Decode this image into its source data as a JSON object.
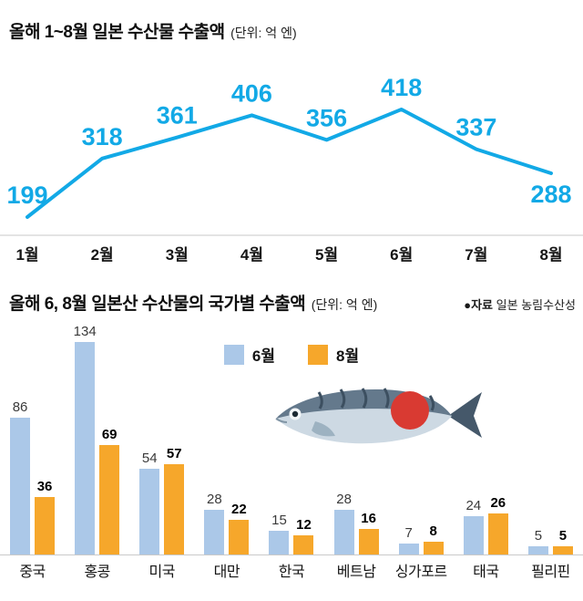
{
  "line_section": {
    "title": "올해 1~8월 일본 수산물 수출액",
    "unit": "(단위: 억 엔)"
  },
  "bar_section": {
    "title": "올해 6, 8월 일본산 수산물의 국가별 수출액",
    "unit": "(단위: 억 엔)",
    "source_label": "●자료",
    "source_name": "일본 농림수산성"
  },
  "colors": {
    "line": "#12a9e6",
    "june_bar": "#abc8e8",
    "august_bar": "#f6a72b",
    "axis": "#c9c9c9",
    "flag_red": "#d93a32"
  },
  "chart_data": [
    {
      "type": "line",
      "title": "올해 1~8월 일본 수산물 수출액 (단위: 억 엔)",
      "x": [
        "1월",
        "2월",
        "3월",
        "4월",
        "5월",
        "6월",
        "7월",
        "8월"
      ],
      "values": [
        199,
        318,
        361,
        406,
        356,
        418,
        337,
        288
      ],
      "line_color": "#12a9e6",
      "label_color": "#12a9e6",
      "ylim": [
        150,
        460
      ],
      "grid": false,
      "legend_position": "none"
    },
    {
      "type": "bar",
      "title": "올해 6, 8월 일본산 수산물의 국가별 수출액 (단위: 억 엔)",
      "categories": [
        "중국",
        "홍콩",
        "미국",
        "대만",
        "한국",
        "베트남",
        "싱가포르",
        "태국",
        "필리핀"
      ],
      "series": [
        {
          "name": "6월",
          "color": "#abc8e8",
          "values": [
            86,
            134,
            54,
            28,
            15,
            28,
            7,
            24,
            5
          ]
        },
        {
          "name": "8월",
          "color": "#f6a72b",
          "values": [
            36,
            69,
            57,
            22,
            12,
            16,
            8,
            26,
            5
          ]
        }
      ],
      "ylim": [
        0,
        140
      ],
      "grid": false,
      "legend_position": "top-center",
      "source": "자료 일본 농림수산성"
    }
  ],
  "icons": {
    "fish": "mackerel-with-japan-flag-illustration"
  }
}
